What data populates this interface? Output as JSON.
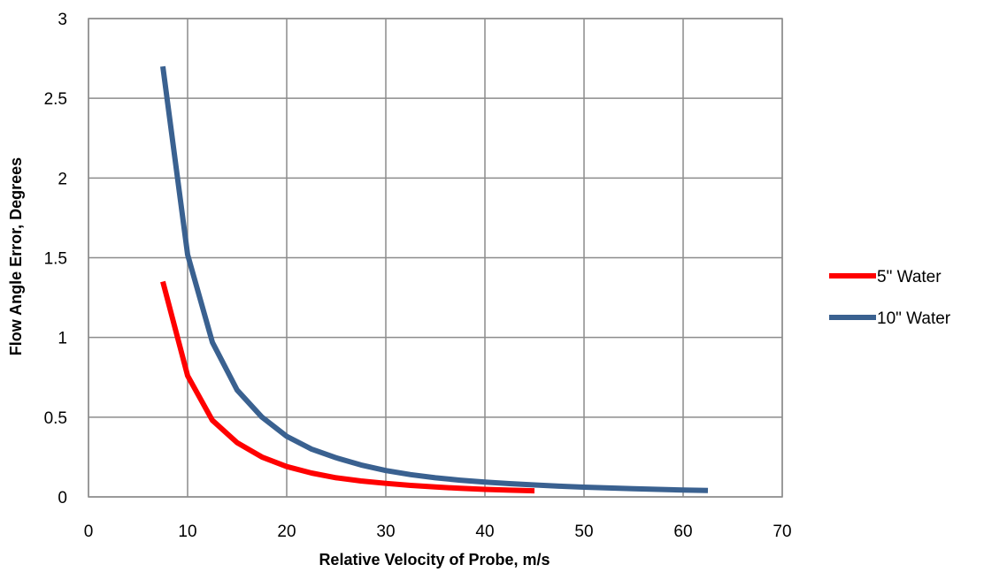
{
  "chart_data": {
    "type": "line",
    "title": "",
    "xlabel": "Relative Velocity of Probe, m/s",
    "ylabel": "Flow Angle Error, Degrees",
    "xlim": [
      0,
      70
    ],
    "ylim": [
      0,
      3
    ],
    "x_ticks": [
      0,
      10,
      20,
      30,
      40,
      50,
      60,
      70
    ],
    "y_ticks": [
      0,
      0.5,
      1,
      1.5,
      2,
      2.5,
      3
    ],
    "x_tick_labels": [
      "0",
      "10",
      "20",
      "30",
      "40",
      "50",
      "60",
      "70"
    ],
    "y_tick_labels": [
      "0",
      "0.5",
      "1",
      "1.5",
      "2",
      "2.5",
      "3"
    ],
    "grid": true,
    "legend_position": "right",
    "series": [
      {
        "name": "5\" Water",
        "color": "#ff0000",
        "x": [
          7.5,
          10,
          12.5,
          15,
          17.5,
          20,
          22.5,
          25,
          27.5,
          30,
          32.5,
          35,
          37.5,
          40,
          42.5,
          45
        ],
        "y": [
          1.35,
          0.76,
          0.48,
          0.34,
          0.25,
          0.19,
          0.15,
          0.12,
          0.1,
          0.085,
          0.072,
          0.062,
          0.054,
          0.047,
          0.042,
          0.038
        ]
      },
      {
        "name": "10\" Water",
        "color": "#3a6190",
        "x": [
          7.5,
          10,
          12.5,
          15,
          17.5,
          20,
          22.5,
          25,
          27.5,
          30,
          32.5,
          35,
          37.5,
          40,
          42.5,
          45,
          47.5,
          50,
          52.5,
          55,
          57.5,
          60,
          62.5
        ],
        "y": [
          2.7,
          1.52,
          0.97,
          0.67,
          0.5,
          0.38,
          0.3,
          0.245,
          0.2,
          0.165,
          0.14,
          0.12,
          0.105,
          0.093,
          0.083,
          0.075,
          0.067,
          0.061,
          0.056,
          0.051,
          0.047,
          0.043,
          0.04
        ]
      }
    ]
  }
}
